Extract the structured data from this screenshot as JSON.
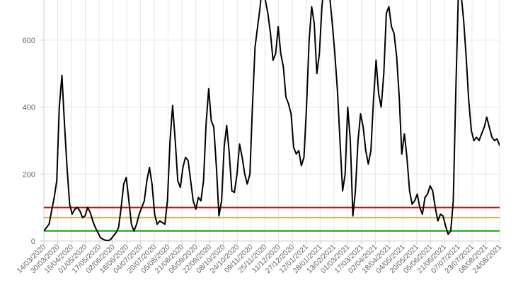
{
  "chart_data": {
    "type": "line",
    "title": "",
    "xlabel": "",
    "ylabel": "",
    "ylim": [
      0,
      720
    ],
    "y_ticks": [
      0,
      200,
      400,
      600
    ],
    "grid": true,
    "x_labels": [
      "14/03/2020",
      "30/03/2020",
      "15/04/2020",
      "01/05/2020",
      "17/05/2020",
      "02/06/2020",
      "18/06/2020",
      "04/07/2020",
      "20/07/2020",
      "05/08/2020",
      "21/08/2020",
      "06/09/2020",
      "22/09/2020",
      "08/10/2020",
      "24/10/2020",
      "09/11/2020",
      "25/11/2020",
      "11/12/2020",
      "27/12/2020",
      "12/01/2021",
      "28/01/2021",
      "13/02/2021",
      "01/03/2021",
      "17/03/2021",
      "02/04/2021",
      "18/04/2021",
      "04/05/2021",
      "20/05/2021",
      "05/06/2021",
      "21/06/2021",
      "07/07/2021",
      "23/07/2021",
      "08/08/2021",
      "24/08/2021"
    ],
    "reference_lines": [
      {
        "value": 100,
        "color": "#e60000"
      },
      {
        "value": 70,
        "color": "#e6b800"
      },
      {
        "value": 30,
        "color": "#00aa00"
      }
    ],
    "series": [
      {
        "color": "#000000",
        "points": [
          [
            0,
            30
          ],
          [
            2,
            50
          ],
          [
            3,
            90
          ],
          [
            4,
            130
          ],
          [
            5,
            180
          ],
          [
            6,
            400
          ],
          [
            7,
            495
          ],
          [
            8,
            350
          ],
          [
            9,
            220
          ],
          [
            10,
            110
          ],
          [
            11,
            80
          ],
          [
            12,
            95
          ],
          [
            13,
            100
          ],
          [
            14,
            90
          ],
          [
            15,
            70
          ],
          [
            16,
            75
          ],
          [
            17,
            100
          ],
          [
            18,
            85
          ],
          [
            19,
            60
          ],
          [
            20,
            40
          ],
          [
            21,
            25
          ],
          [
            22,
            10
          ],
          [
            23,
            5
          ],
          [
            24,
            2
          ],
          [
            25,
            1
          ],
          [
            26,
            5
          ],
          [
            27,
            15
          ],
          [
            28,
            25
          ],
          [
            29,
            40
          ],
          [
            30,
            100
          ],
          [
            31,
            170
          ],
          [
            32,
            190
          ],
          [
            33,
            120
          ],
          [
            34,
            50
          ],
          [
            35,
            30
          ],
          [
            36,
            50
          ],
          [
            37,
            80
          ],
          [
            38,
            100
          ],
          [
            39,
            120
          ],
          [
            40,
            180
          ],
          [
            41,
            220
          ],
          [
            42,
            170
          ],
          [
            43,
            80
          ],
          [
            44,
            50
          ],
          [
            45,
            60
          ],
          [
            46,
            55
          ],
          [
            47,
            50
          ],
          [
            48,
            120
          ],
          [
            49,
            300
          ],
          [
            50,
            405
          ],
          [
            51,
            300
          ],
          [
            52,
            180
          ],
          [
            53,
            160
          ],
          [
            54,
            220
          ],
          [
            55,
            250
          ],
          [
            56,
            240
          ],
          [
            57,
            180
          ],
          [
            58,
            120
          ],
          [
            59,
            95
          ],
          [
            60,
            130
          ],
          [
            61,
            120
          ],
          [
            62,
            180
          ],
          [
            63,
            350
          ],
          [
            64,
            455
          ],
          [
            65,
            360
          ],
          [
            66,
            340
          ],
          [
            67,
            220
          ],
          [
            68,
            75
          ],
          [
            69,
            120
          ],
          [
            70,
            280
          ],
          [
            71,
            345
          ],
          [
            72,
            260
          ],
          [
            73,
            150
          ],
          [
            74,
            145
          ],
          [
            75,
            200
          ],
          [
            76,
            290
          ],
          [
            77,
            250
          ],
          [
            78,
            200
          ],
          [
            79,
            170
          ],
          [
            80,
            200
          ],
          [
            81,
            400
          ],
          [
            82,
            580
          ],
          [
            83,
            640
          ],
          [
            84,
            700
          ],
          [
            85,
            780
          ],
          [
            86,
            720
          ],
          [
            87,
            680
          ],
          [
            88,
            620
          ],
          [
            89,
            540
          ],
          [
            90,
            560
          ],
          [
            91,
            640
          ],
          [
            92,
            560
          ],
          [
            93,
            520
          ],
          [
            94,
            430
          ],
          [
            95,
            410
          ],
          [
            96,
            380
          ],
          [
            97,
            280
          ],
          [
            98,
            260
          ],
          [
            99,
            270
          ],
          [
            100,
            225
          ],
          [
            101,
            250
          ],
          [
            102,
            400
          ],
          [
            103,
            600
          ],
          [
            104,
            700
          ],
          [
            105,
            650
          ],
          [
            106,
            500
          ],
          [
            107,
            560
          ],
          [
            108,
            700
          ],
          [
            109,
            780
          ],
          [
            110,
            760
          ],
          [
            111,
            730
          ],
          [
            112,
            650
          ],
          [
            113,
            560
          ],
          [
            114,
            450
          ],
          [
            115,
            300
          ],
          [
            116,
            150
          ],
          [
            117,
            200
          ],
          [
            118,
            400
          ],
          [
            119,
            300
          ],
          [
            120,
            75
          ],
          [
            121,
            150
          ],
          [
            122,
            300
          ],
          [
            123,
            380
          ],
          [
            124,
            340
          ],
          [
            125,
            270
          ],
          [
            126,
            230
          ],
          [
            127,
            270
          ],
          [
            128,
            420
          ],
          [
            129,
            540
          ],
          [
            130,
            440
          ],
          [
            131,
            400
          ],
          [
            132,
            500
          ],
          [
            133,
            680
          ],
          [
            134,
            700
          ],
          [
            135,
            640
          ],
          [
            136,
            620
          ],
          [
            137,
            550
          ],
          [
            138,
            430
          ],
          [
            139,
            260
          ],
          [
            140,
            320
          ],
          [
            141,
            250
          ],
          [
            142,
            150
          ],
          [
            143,
            110
          ],
          [
            144,
            120
          ],
          [
            145,
            140
          ],
          [
            146,
            100
          ],
          [
            147,
            80
          ],
          [
            148,
            130
          ],
          [
            149,
            140
          ],
          [
            150,
            165
          ],
          [
            151,
            150
          ],
          [
            152,
            100
          ],
          [
            153,
            60
          ],
          [
            154,
            80
          ],
          [
            155,
            75
          ],
          [
            156,
            45
          ],
          [
            157,
            20
          ],
          [
            158,
            30
          ],
          [
            159,
            120
          ],
          [
            160,
            450
          ],
          [
            161,
            750
          ],
          [
            162,
            740
          ],
          [
            163,
            660
          ],
          [
            164,
            550
          ],
          [
            165,
            420
          ],
          [
            166,
            330
          ],
          [
            167,
            300
          ],
          [
            168,
            310
          ],
          [
            169,
            300
          ],
          [
            170,
            320
          ],
          [
            171,
            340
          ],
          [
            172,
            370
          ],
          [
            173,
            340
          ],
          [
            174,
            310
          ],
          [
            175,
            300
          ],
          [
            176,
            305
          ],
          [
            177,
            285
          ]
        ]
      }
    ]
  }
}
